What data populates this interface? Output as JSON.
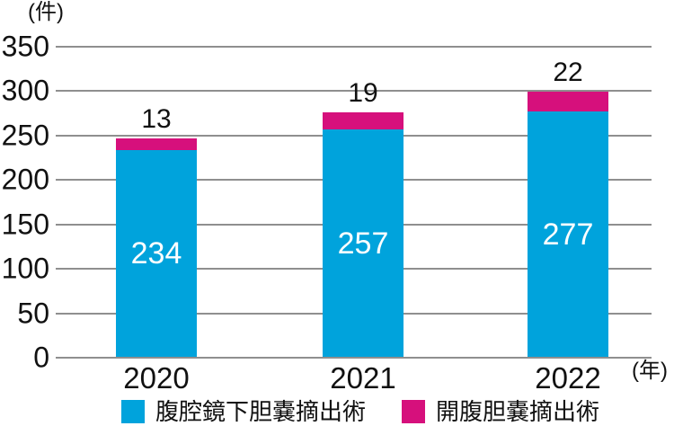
{
  "chart": {
    "y_unit_label": "(件)",
    "x_unit_label": "(年)"
  },
  "chart_data": {
    "type": "bar",
    "stacked": true,
    "title": "",
    "categories": [
      "2020",
      "2021",
      "2022"
    ],
    "series": [
      {
        "name": "腹腔鏡下胆嚢摘出術",
        "color": "#00a3dc",
        "values": [
          234,
          257,
          277
        ],
        "label_position": "inside",
        "label_color": "#ffffff"
      },
      {
        "name": "開腹胆嚢摘出術",
        "color": "#d6107c",
        "values": [
          13,
          19,
          22
        ],
        "label_position": "above",
        "label_color": "#111111"
      }
    ],
    "ylim": [
      0,
      350
    ],
    "ystep": 50,
    "yticks": [
      0,
      50,
      100,
      150,
      200,
      250,
      300,
      350
    ],
    "grid": true,
    "gridline_color": "#8f8f8f",
    "legend_position": "bottom"
  }
}
